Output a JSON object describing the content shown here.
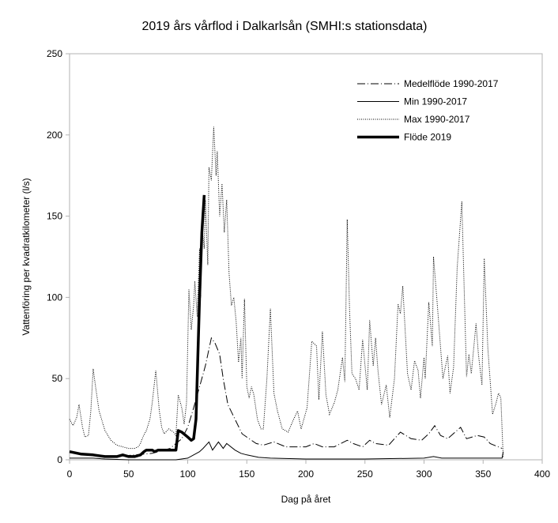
{
  "chart_data": {
    "type": "line",
    "title": "2019 års vårflod i Dalkarlsån (SMHI:s stationsdata)",
    "xlabel": "Dag på året",
    "ylabel": "Vattenföring per kvadratkilometer (l/s)",
    "xlim": [
      0,
      400
    ],
    "ylim": [
      0,
      250
    ],
    "xticks": [
      0,
      50,
      100,
      150,
      200,
      250,
      300,
      350,
      400
    ],
    "yticks": [
      0,
      50,
      100,
      150,
      200,
      250
    ],
    "grid": false,
    "legend_position": "top-right",
    "series": [
      {
        "name": "Medelflöde 1990-2017",
        "style": "dashdot",
        "points": [
          [
            0,
            5
          ],
          [
            10,
            4
          ],
          [
            20,
            3
          ],
          [
            40,
            2
          ],
          [
            55,
            3
          ],
          [
            70,
            4
          ],
          [
            85,
            7
          ],
          [
            95,
            13
          ],
          [
            100,
            20
          ],
          [
            105,
            32
          ],
          [
            110,
            45
          ],
          [
            115,
            58
          ],
          [
            120,
            75
          ],
          [
            123,
            72
          ],
          [
            127,
            65
          ],
          [
            130,
            50
          ],
          [
            134,
            34
          ],
          [
            140,
            25
          ],
          [
            146,
            16
          ],
          [
            152,
            13
          ],
          [
            158,
            10
          ],
          [
            164,
            9
          ],
          [
            173,
            11
          ],
          [
            183,
            8
          ],
          [
            200,
            8
          ],
          [
            207,
            10
          ],
          [
            214,
            8
          ],
          [
            224,
            8
          ],
          [
            235,
            12
          ],
          [
            240,
            10
          ],
          [
            248,
            8
          ],
          [
            254,
            12
          ],
          [
            259,
            10
          ],
          [
            270,
            9
          ],
          [
            280,
            17
          ],
          [
            289,
            13
          ],
          [
            298,
            12
          ],
          [
            304,
            16
          ],
          [
            309,
            21
          ],
          [
            314,
            15
          ],
          [
            320,
            13
          ],
          [
            331,
            20
          ],
          [
            336,
            13
          ],
          [
            345,
            15
          ],
          [
            351,
            14
          ],
          [
            356,
            10
          ],
          [
            366,
            7
          ]
        ]
      },
      {
        "name": "Min 1990-2017",
        "style": "solid-thin",
        "points": [
          [
            0,
            1
          ],
          [
            20,
            1
          ],
          [
            30,
            0.5
          ],
          [
            50,
            0
          ],
          [
            90,
            0
          ],
          [
            100,
            1
          ],
          [
            105,
            3
          ],
          [
            110,
            5
          ],
          [
            113,
            7
          ],
          [
            118,
            11
          ],
          [
            121,
            6
          ],
          [
            126,
            11
          ],
          [
            130,
            7
          ],
          [
            133,
            10
          ],
          [
            140,
            6
          ],
          [
            145,
            4
          ],
          [
            150,
            3
          ],
          [
            160,
            1.5
          ],
          [
            170,
            1
          ],
          [
            200,
            0.5
          ],
          [
            250,
            0.5
          ],
          [
            300,
            1
          ],
          [
            308,
            2
          ],
          [
            315,
            1
          ],
          [
            366,
            1
          ],
          [
            367,
            5
          ]
        ]
      },
      {
        "name": "Max 1990-2017",
        "style": "dotted",
        "points": [
          [
            0,
            25
          ],
          [
            3,
            21
          ],
          [
            6,
            26
          ],
          [
            8,
            34
          ],
          [
            11,
            20
          ],
          [
            13,
            14
          ],
          [
            16,
            15
          ],
          [
            18,
            30
          ],
          [
            20,
            56
          ],
          [
            22,
            45
          ],
          [
            25,
            30
          ],
          [
            30,
            18
          ],
          [
            35,
            12
          ],
          [
            40,
            9
          ],
          [
            45,
            8
          ],
          [
            50,
            7
          ],
          [
            55,
            7
          ],
          [
            58,
            8
          ],
          [
            60,
            10
          ],
          [
            62,
            14
          ],
          [
            65,
            18
          ],
          [
            68,
            25
          ],
          [
            70,
            35
          ],
          [
            73,
            55
          ],
          [
            76,
            30
          ],
          [
            78,
            20
          ],
          [
            80,
            16
          ],
          [
            84,
            19
          ],
          [
            88,
            17
          ],
          [
            90,
            15
          ],
          [
            92,
            40
          ],
          [
            95,
            32
          ],
          [
            97,
            22
          ],
          [
            99,
            35
          ],
          [
            101,
            105
          ],
          [
            103,
            80
          ],
          [
            105,
            95
          ],
          [
            106,
            110
          ],
          [
            108,
            88
          ],
          [
            110,
            130
          ],
          [
            111,
            100
          ],
          [
            112,
            145
          ],
          [
            114,
            130
          ],
          [
            115,
            160
          ],
          [
            117,
            120
          ],
          [
            118,
            180
          ],
          [
            120,
            172
          ],
          [
            122,
            205
          ],
          [
            124,
            175
          ],
          [
            125,
            190
          ],
          [
            127,
            150
          ],
          [
            129,
            170
          ],
          [
            131,
            140
          ],
          [
            133,
            160
          ],
          [
            135,
            115
          ],
          [
            137,
            95
          ],
          [
            139,
            100
          ],
          [
            141,
            85
          ],
          [
            143,
            60
          ],
          [
            145,
            75
          ],
          [
            146,
            50
          ],
          [
            148,
            99
          ],
          [
            150,
            45
          ],
          [
            152,
            38
          ],
          [
            154,
            45
          ],
          [
            156,
            40
          ],
          [
            159,
            25
          ],
          [
            162,
            19
          ],
          [
            164,
            19
          ],
          [
            167,
            50
          ],
          [
            170,
            93
          ],
          [
            173,
            41
          ],
          [
            176,
            30
          ],
          [
            180,
            19
          ],
          [
            185,
            17
          ],
          [
            189,
            24
          ],
          [
            193,
            30
          ],
          [
            196,
            19
          ],
          [
            201,
            32
          ],
          [
            205,
            73
          ],
          [
            209,
            70
          ],
          [
            211,
            37
          ],
          [
            214,
            79
          ],
          [
            217,
            40
          ],
          [
            220,
            28
          ],
          [
            224,
            35
          ],
          [
            227,
            43
          ],
          [
            231,
            63
          ],
          [
            233,
            48
          ],
          [
            235,
            148
          ],
          [
            237,
            92
          ],
          [
            239,
            53
          ],
          [
            242,
            50
          ],
          [
            245,
            43
          ],
          [
            248,
            74
          ],
          [
            252,
            43
          ],
          [
            254,
            86
          ],
          [
            257,
            58
          ],
          [
            259,
            75
          ],
          [
            261,
            55
          ],
          [
            264,
            34
          ],
          [
            268,
            46
          ],
          [
            271,
            26
          ],
          [
            275,
            50
          ],
          [
            278,
            96
          ],
          [
            280,
            90
          ],
          [
            282,
            107
          ],
          [
            286,
            53
          ],
          [
            289,
            43
          ],
          [
            292,
            61
          ],
          [
            295,
            55
          ],
          [
            297,
            38
          ],
          [
            300,
            63
          ],
          [
            301,
            50
          ],
          [
            304,
            97
          ],
          [
            307,
            70
          ],
          [
            308,
            125
          ],
          [
            311,
            98
          ],
          [
            316,
            50
          ],
          [
            320,
            64
          ],
          [
            322,
            41
          ],
          [
            325,
            57
          ],
          [
            328,
            118
          ],
          [
            332,
            159
          ],
          [
            336,
            51
          ],
          [
            338,
            65
          ],
          [
            340,
            53
          ],
          [
            344,
            84
          ],
          [
            346,
            65
          ],
          [
            349,
            46
          ],
          [
            351,
            124
          ],
          [
            354,
            69
          ],
          [
            358,
            28
          ],
          [
            361,
            35
          ],
          [
            363,
            41
          ],
          [
            365,
            38
          ],
          [
            367,
            1
          ]
        ]
      },
      {
        "name": "Flöde 2019",
        "style": "solid-thick",
        "points": [
          [
            0,
            5
          ],
          [
            10,
            3.5
          ],
          [
            20,
            3
          ],
          [
            30,
            2
          ],
          [
            35,
            2
          ],
          [
            40,
            2
          ],
          [
            45,
            3
          ],
          [
            50,
            2
          ],
          [
            55,
            2
          ],
          [
            60,
            3
          ],
          [
            63,
            5
          ],
          [
            65,
            6
          ],
          [
            70,
            6
          ],
          [
            72,
            5
          ],
          [
            75,
            6
          ],
          [
            80,
            6
          ],
          [
            85,
            6
          ],
          [
            90,
            6
          ],
          [
            92,
            18
          ],
          [
            95,
            17
          ],
          [
            100,
            14
          ],
          [
            103,
            12
          ],
          [
            105,
            13
          ],
          [
            107,
            25
          ],
          [
            108,
            50
          ],
          [
            110,
            100
          ],
          [
            112,
            140
          ],
          [
            114,
            163
          ]
        ]
      }
    ]
  }
}
